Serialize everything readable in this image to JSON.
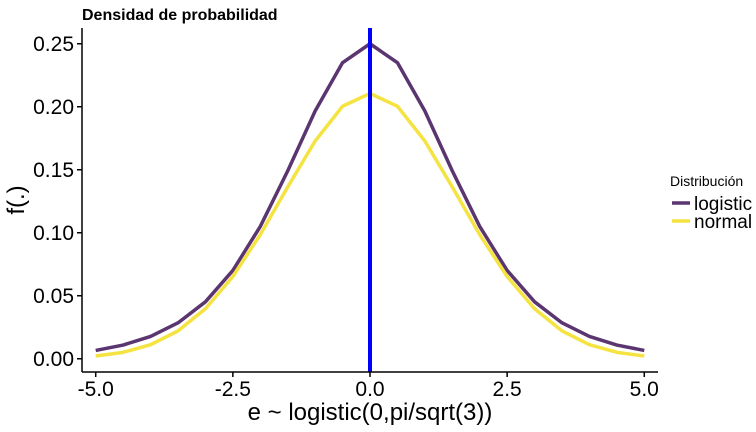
{
  "chart_data": {
    "type": "line",
    "title": "Densidad de probabilidad",
    "xlabel": "e ~ logistic(0,pi/sqrt(3))",
    "ylabel": "f(.)",
    "xlim": [
      -5.25,
      5.25
    ],
    "ylim": [
      -0.0105,
      0.2625
    ],
    "xticks": [
      -5.0,
      -2.5,
      0.0,
      2.5,
      5.0
    ],
    "xtick_labels": [
      "-5.0",
      "-2.5",
      "0.0",
      "2.5",
      "5.0"
    ],
    "yticks": [
      0.0,
      0.05,
      0.1,
      0.15,
      0.2,
      0.25
    ],
    "ytick_labels": [
      "0.00",
      "0.05",
      "0.10",
      "0.15",
      "0.20",
      "0.25"
    ],
    "grid": false,
    "legend": {
      "title": "Distribución",
      "position": "right"
    },
    "vline": {
      "x": 0,
      "color": "#0000ff"
    },
    "series": [
      {
        "name": "logistic",
        "color": "#5b3570",
        "x": [
          -5,
          -4.5,
          -4,
          -3.5,
          -3,
          -2.5,
          -2,
          -1.5,
          -1,
          -0.5,
          0,
          0.5,
          1,
          1.5,
          2,
          2.5,
          3,
          3.5,
          4,
          4.5,
          5
        ],
        "y": [
          0.0066,
          0.0109,
          0.0177,
          0.0285,
          0.0452,
          0.0701,
          0.105,
          0.1491,
          0.1966,
          0.235,
          0.25,
          0.235,
          0.1966,
          0.1491,
          0.105,
          0.0701,
          0.0452,
          0.0285,
          0.0177,
          0.0109,
          0.0066
        ]
      },
      {
        "name": "normal",
        "color": "#f5e342",
        "x": [
          -5,
          -4.5,
          -4,
          -3.5,
          -3,
          -2.5,
          -2,
          -1.5,
          -1,
          -0.5,
          0,
          0.5,
          1,
          1.5,
          2,
          2.5,
          3,
          3.5,
          4,
          4.5,
          5
        ],
        "y": [
          0.0022,
          0.0051,
          0.0112,
          0.0221,
          0.0397,
          0.0653,
          0.0985,
          0.1363,
          0.1728,
          0.2004,
          0.2106,
          0.2004,
          0.1728,
          0.1363,
          0.0985,
          0.0653,
          0.0397,
          0.0221,
          0.0112,
          0.0051,
          0.0022
        ]
      }
    ]
  }
}
